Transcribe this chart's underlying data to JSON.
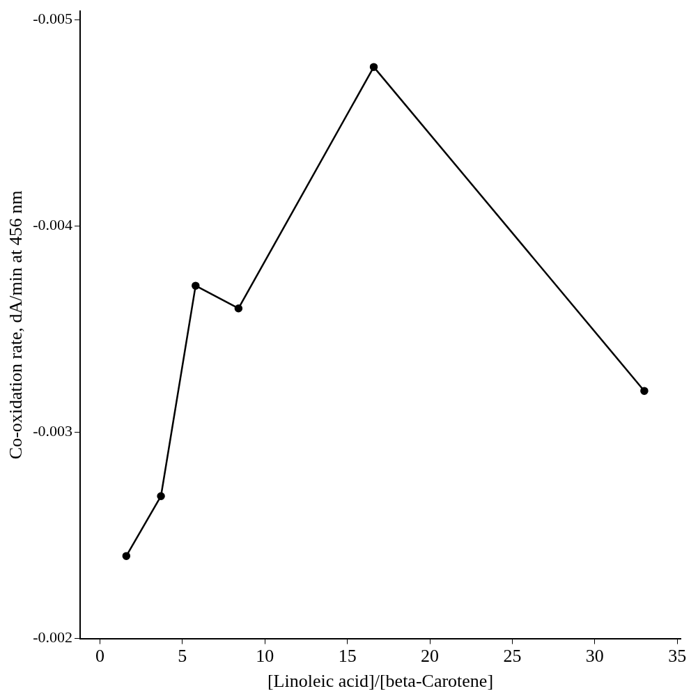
{
  "chart_data": {
    "type": "line",
    "xlabel": "[Linoleic acid]/[beta-Carotene]",
    "ylabel": "Co-oxidation rate, dA/min at 456 nm",
    "x": [
      1.6,
      3.7,
      5.8,
      8.4,
      16.6,
      33.0
    ],
    "series": [
      {
        "color": "#000000",
        "values": [
          -0.0024,
          -0.00269,
          -0.00371,
          -0.0036,
          -0.00477,
          -0.0032
        ]
      }
    ],
    "xlim": [
      -1.2,
      35.2
    ],
    "xticks": [
      0,
      5,
      10,
      15,
      20,
      25,
      30,
      35
    ],
    "ylim": [
      -0.002,
      -0.00504
    ],
    "yticks": [
      -0.002,
      -0.003,
      -0.004,
      -0.005
    ],
    "grid": false,
    "legend": false,
    "marker": "circle",
    "line_style": "solid"
  }
}
